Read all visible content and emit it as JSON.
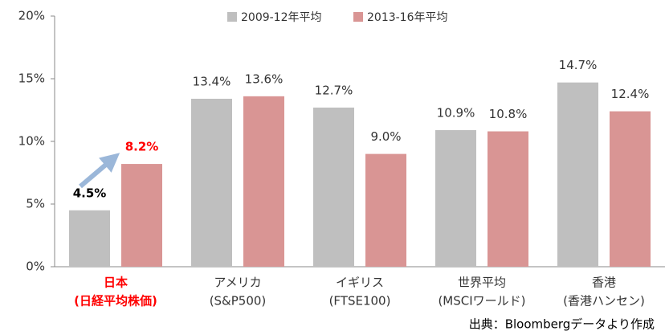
{
  "chart_data": {
    "type": "bar",
    "categories": [
      [
        "日本",
        "(日経平均株価)"
      ],
      [
        "アメリカ",
        "(S&P500)"
      ],
      [
        "イギリス",
        "(FTSE100)"
      ],
      [
        "世界平均",
        "(MSCIワールド)"
      ],
      [
        "香港",
        "(香港ハンセン)"
      ]
    ],
    "series": [
      {
        "name": "2009-12年平均",
        "color": "#bfbfbf",
        "values": [
          4.5,
          13.4,
          12.7,
          10.9,
          14.7
        ],
        "value_labels": [
          "4.5%",
          "13.4%",
          "12.7%",
          "10.9%",
          "14.7%"
        ]
      },
      {
        "name": "2013-16年平均",
        "color": "#d99594",
        "values": [
          8.2,
          13.6,
          9.0,
          10.8,
          12.4
        ],
        "value_labels": [
          "8.2%",
          "13.6%",
          "9.0%",
          "10.8%",
          "12.4%"
        ]
      }
    ],
    "ylim": [
      0,
      20
    ],
    "yticks": [
      {
        "value": 0,
        "label": "0%"
      },
      {
        "value": 5,
        "label": "5%"
      },
      {
        "value": 10,
        "label": "10%"
      },
      {
        "value": 15,
        "label": "15%"
      },
      {
        "value": 20,
        "label": "20%"
      }
    ],
    "grid": false,
    "legend": "top",
    "highlight": {
      "category": 0,
      "color": "#ff0000"
    },
    "source": "出典：Bloombergデータより作成"
  }
}
